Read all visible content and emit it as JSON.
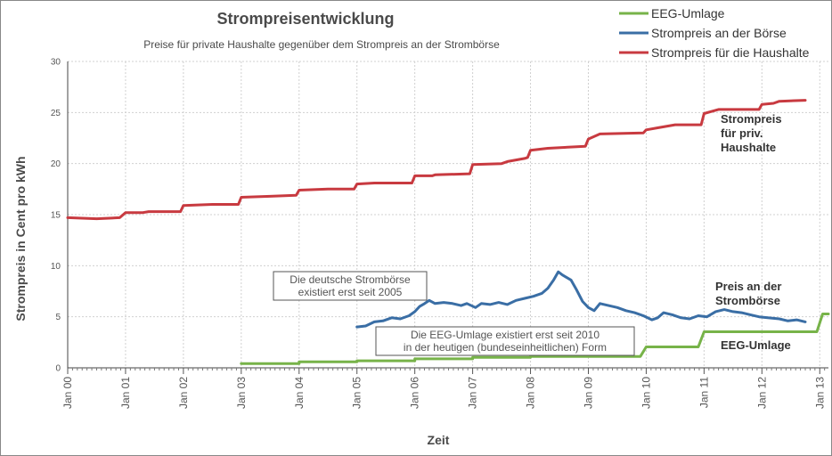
{
  "chart_data": {
    "type": "line",
    "title": "Strompreisentwicklung",
    "subtitle": "Preise für private Haushalte gegenüber dem Strompreis an der Strombörse",
    "xlabel": "Zeit",
    "ylabel": "Strompreis in Cent pro kWh",
    "ylim": [
      0,
      30
    ],
    "xlim": [
      2000.0,
      2013.15
    ],
    "y_ticks": [
      0,
      5,
      10,
      15,
      20,
      25,
      30
    ],
    "x_ticks": [
      "Jan 00",
      "Jan 01",
      "Jan 02",
      "Jan 03",
      "Jan 04",
      "Jan 05",
      "Jan 06",
      "Jan 07",
      "Jan 08",
      "Jan 09",
      "Jan 10",
      "Jan 11",
      "Jan 12",
      "Jan 13"
    ],
    "grid": true,
    "legend_position": "top-right",
    "series": [
      {
        "name": "EEG-Umlage",
        "color": "#77b349",
        "points": [
          [
            2003.0,
            0.42
          ],
          [
            2004.0,
            0.42
          ],
          [
            2004.0,
            0.58
          ],
          [
            2005.0,
            0.58
          ],
          [
            2005.0,
            0.69
          ],
          [
            2006.0,
            0.69
          ],
          [
            2006.0,
            0.88
          ],
          [
            2007.0,
            0.88
          ],
          [
            2007.0,
            1.02
          ],
          [
            2008.0,
            1.02
          ],
          [
            2008.0,
            1.12
          ],
          [
            2009.9,
            1.12
          ],
          [
            2010.0,
            2.05
          ],
          [
            2010.9,
            2.05
          ],
          [
            2011.0,
            3.53
          ],
          [
            2012.95,
            3.53
          ],
          [
            2013.05,
            5.28
          ],
          [
            2013.15,
            5.28
          ]
        ]
      },
      {
        "name": "Strompreis an der Börse",
        "color": "#3a6ea5",
        "points": [
          [
            2005.0,
            4.0
          ],
          [
            2005.15,
            4.1
          ],
          [
            2005.3,
            4.5
          ],
          [
            2005.45,
            4.6
          ],
          [
            2005.6,
            4.9
          ],
          [
            2005.75,
            4.8
          ],
          [
            2005.9,
            5.1
          ],
          [
            2006.0,
            5.5
          ],
          [
            2006.08,
            6.0
          ],
          [
            2006.17,
            6.3
          ],
          [
            2006.25,
            6.6
          ],
          [
            2006.35,
            6.3
          ],
          [
            2006.5,
            6.4
          ],
          [
            2006.65,
            6.3
          ],
          [
            2006.8,
            6.1
          ],
          [
            2006.9,
            6.3
          ],
          [
            2007.05,
            5.9
          ],
          [
            2007.15,
            6.3
          ],
          [
            2007.3,
            6.2
          ],
          [
            2007.45,
            6.4
          ],
          [
            2007.6,
            6.2
          ],
          [
            2007.75,
            6.6
          ],
          [
            2007.9,
            6.8
          ],
          [
            2008.05,
            7.0
          ],
          [
            2008.2,
            7.3
          ],
          [
            2008.3,
            7.8
          ],
          [
            2008.4,
            8.6
          ],
          [
            2008.48,
            9.4
          ],
          [
            2008.55,
            9.1
          ],
          [
            2008.7,
            8.6
          ],
          [
            2008.8,
            7.6
          ],
          [
            2008.9,
            6.5
          ],
          [
            2009.0,
            5.9
          ],
          [
            2009.1,
            5.6
          ],
          [
            2009.2,
            6.3
          ],
          [
            2009.35,
            6.1
          ],
          [
            2009.5,
            5.9
          ],
          [
            2009.65,
            5.6
          ],
          [
            2009.8,
            5.4
          ],
          [
            2009.95,
            5.1
          ],
          [
            2010.1,
            4.7
          ],
          [
            2010.2,
            4.9
          ],
          [
            2010.3,
            5.4
          ],
          [
            2010.45,
            5.2
          ],
          [
            2010.6,
            4.9
          ],
          [
            2010.75,
            4.8
          ],
          [
            2010.9,
            5.1
          ],
          [
            2011.05,
            5.0
          ],
          [
            2011.2,
            5.5
          ],
          [
            2011.35,
            5.7
          ],
          [
            2011.5,
            5.5
          ],
          [
            2011.65,
            5.4
          ],
          [
            2011.8,
            5.2
          ],
          [
            2011.95,
            5.0
          ],
          [
            2012.1,
            4.9
          ],
          [
            2012.3,
            4.8
          ],
          [
            2012.45,
            4.6
          ],
          [
            2012.6,
            4.7
          ],
          [
            2012.75,
            4.5
          ]
        ]
      },
      {
        "name": "Strompreis für die Haushalte",
        "color": "#c83a40",
        "points": [
          [
            2000.0,
            14.7
          ],
          [
            2000.5,
            14.6
          ],
          [
            2000.9,
            14.7
          ],
          [
            2001.0,
            15.2
          ],
          [
            2001.3,
            15.2
          ],
          [
            2001.4,
            15.3
          ],
          [
            2001.95,
            15.3
          ],
          [
            2002.0,
            15.9
          ],
          [
            2002.5,
            16.0
          ],
          [
            2002.95,
            16.0
          ],
          [
            2003.0,
            16.7
          ],
          [
            2003.5,
            16.8
          ],
          [
            2003.95,
            16.9
          ],
          [
            2004.0,
            17.4
          ],
          [
            2004.5,
            17.5
          ],
          [
            2004.95,
            17.5
          ],
          [
            2005.0,
            18.0
          ],
          [
            2005.3,
            18.1
          ],
          [
            2005.95,
            18.1
          ],
          [
            2006.0,
            18.8
          ],
          [
            2006.3,
            18.8
          ],
          [
            2006.35,
            18.9
          ],
          [
            2006.95,
            19.0
          ],
          [
            2007.0,
            19.9
          ],
          [
            2007.5,
            20.0
          ],
          [
            2007.6,
            20.2
          ],
          [
            2007.9,
            20.5
          ],
          [
            2007.95,
            20.6
          ],
          [
            2008.0,
            21.3
          ],
          [
            2008.3,
            21.5
          ],
          [
            2008.95,
            21.7
          ],
          [
            2009.0,
            22.4
          ],
          [
            2009.2,
            22.9
          ],
          [
            2009.95,
            23.0
          ],
          [
            2010.0,
            23.3
          ],
          [
            2010.2,
            23.5
          ],
          [
            2010.3,
            23.6
          ],
          [
            2010.5,
            23.8
          ],
          [
            2010.95,
            23.8
          ],
          [
            2011.0,
            24.9
          ],
          [
            2011.25,
            25.3
          ],
          [
            2011.95,
            25.3
          ],
          [
            2012.0,
            25.8
          ],
          [
            2012.2,
            25.9
          ],
          [
            2012.3,
            26.1
          ],
          [
            2012.75,
            26.2
          ]
        ]
      }
    ],
    "annotations": [
      {
        "text": "Die deutsche Strombörse\nexistiert erst seit 2005",
        "x": 2003.65,
        "y": 8.1
      },
      {
        "text": "Die EEG-Umlage existiert erst seit 2010\nin der heutigen (bundeseinheitlichen) Form",
        "x": 2006.25,
        "y": 2.8
      }
    ],
    "series_labels": [
      {
        "text": "Strompreis\nfür priv.\nHaushalte",
        "series": "Strompreis für die Haushalte"
      },
      {
        "text": "Preis an der\nStrombörse",
        "series": "Strompreis an der Börse"
      },
      {
        "text": "EEG-Umlage",
        "series": "EEG-Umlage"
      }
    ]
  }
}
